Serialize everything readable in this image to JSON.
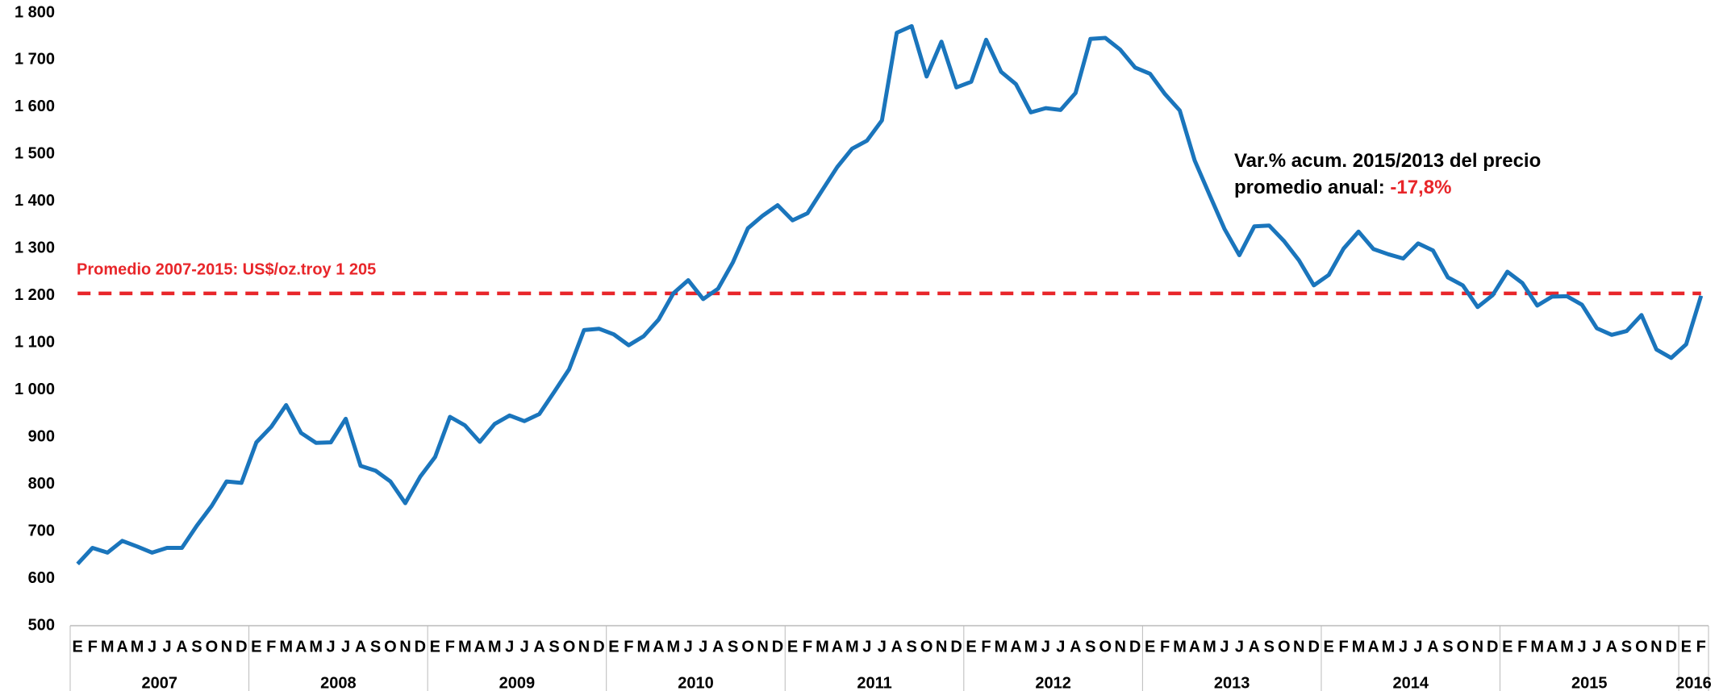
{
  "chart_data": {
    "type": "line",
    "categories": [
      "E",
      "F",
      "M",
      "A",
      "M",
      "J",
      "J",
      "A",
      "S",
      "O",
      "N",
      "D",
      "E",
      "F",
      "M",
      "A",
      "M",
      "J",
      "J",
      "A",
      "S",
      "O",
      "N",
      "D",
      "E",
      "F",
      "M",
      "A",
      "M",
      "J",
      "J",
      "A",
      "S",
      "O",
      "N",
      "D",
      "E",
      "F",
      "M",
      "A",
      "M",
      "J",
      "J",
      "A",
      "S",
      "O",
      "N",
      "D",
      "E",
      "F",
      "M",
      "A",
      "M",
      "J",
      "J",
      "A",
      "S",
      "O",
      "N",
      "D",
      "E",
      "F",
      "M",
      "A",
      "M",
      "J",
      "J",
      "A",
      "S",
      "O",
      "N",
      "D",
      "E",
      "F",
      "M",
      "A",
      "M",
      "J",
      "J",
      "A",
      "S",
      "O",
      "N",
      "D",
      "E",
      "F",
      "M",
      "A",
      "M",
      "J",
      "J",
      "A",
      "S",
      "O",
      "N",
      "D",
      "E",
      "F",
      "M",
      "A",
      "M",
      "J",
      "J",
      "A",
      "S",
      "O",
      "N",
      "D",
      "E",
      "F"
    ],
    "years": [
      "2007",
      "2008",
      "2009",
      "2010",
      "2011",
      "2012",
      "2013",
      "2014",
      "2015",
      "2016"
    ],
    "series": [
      {
        "color": "#1a75bc",
        "values": [
          631,
          665,
          655,
          680,
          668,
          655,
          665,
          665,
          712,
          754,
          806,
          803,
          889,
          922,
          968,
          909,
          888,
          889,
          939,
          839,
          829,
          806,
          760,
          816,
          858,
          943,
          925,
          890,
          928,
          946,
          934,
          949,
          996,
          1044,
          1127,
          1130,
          1118,
          1095,
          1114,
          1149,
          1205,
          1233,
          1193,
          1215,
          1271,
          1343,
          1370,
          1392,
          1360,
          1375,
          1424,
          1473,
          1512,
          1529,
          1572,
          1758,
          1772,
          1665,
          1739,
          1642,
          1654,
          1743,
          1675,
          1649,
          1589,
          1598,
          1594,
          1630,
          1745,
          1747,
          1722,
          1684,
          1671,
          1628,
          1593,
          1487,
          1414,
          1342,
          1286,
          1347,
          1349,
          1316,
          1275,
          1222,
          1244,
          1300,
          1336,
          1299,
          1288,
          1279,
          1311,
          1296,
          1239,
          1222,
          1176,
          1201,
          1251,
          1227,
          1179,
          1198,
          1199,
          1181,
          1131,
          1117,
          1125,
          1159,
          1086,
          1068,
          1097,
          1200
        ]
      }
    ],
    "ylim": [
      500,
      1800
    ],
    "yticks": [
      500,
      600,
      700,
      800,
      900,
      {
        "value": 1000,
        "label": "1 000"
      },
      {
        "value": 1100,
        "label": "1 100"
      },
      {
        "value": 1200,
        "label": "1 200"
      },
      {
        "value": 1300,
        "label": "1 300"
      },
      {
        "value": 1400,
        "label": "1 400"
      },
      {
        "value": 1500,
        "label": "1 500"
      },
      {
        "value": 1600,
        "label": "1 600"
      },
      {
        "value": 1700,
        "label": "1 700"
      },
      {
        "value": 1800,
        "label": "1 800"
      }
    ],
    "reference_line": {
      "value": 1205,
      "label": "Promedio 2007-2015: US$/oz.troy 1 205",
      "color": "#e8262a"
    },
    "annotation": {
      "lines": [
        "Var.% acum. 2015/2013 del precio",
        "promedio anual:"
      ],
      "highlight": "-17,8%",
      "highlight_color": "#e8262a"
    }
  }
}
